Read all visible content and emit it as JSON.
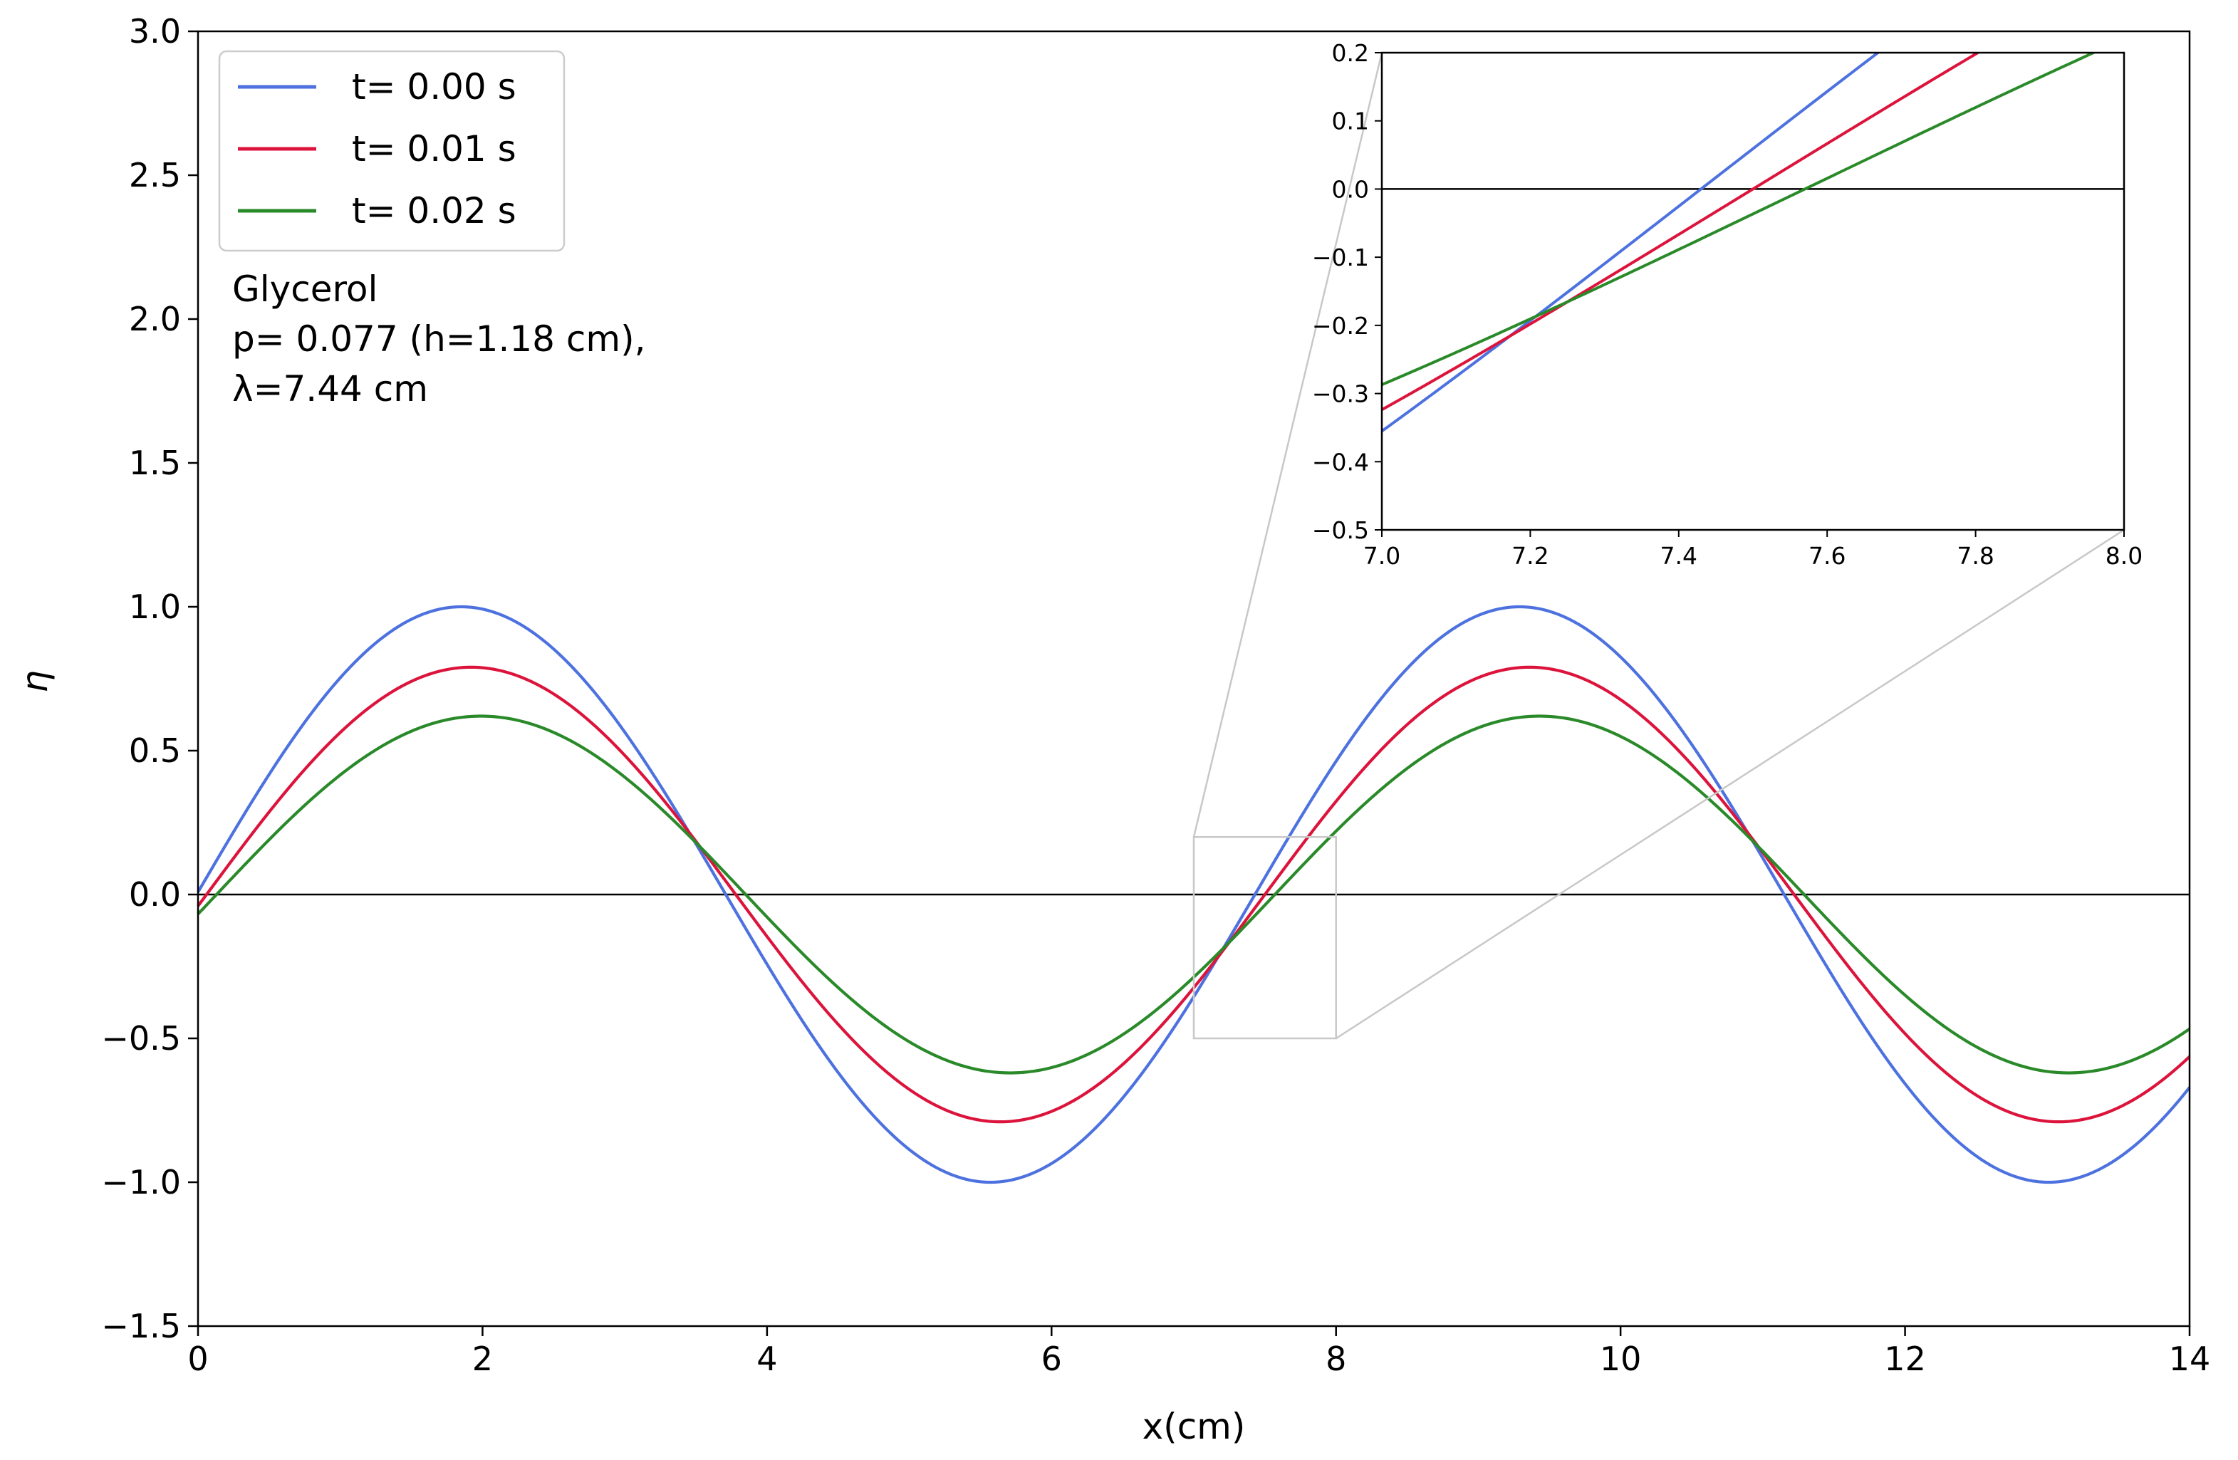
{
  "chart_data": {
    "type": "line",
    "title": "",
    "xlabel": "x(cm)",
    "ylabel": "η",
    "xlim": [
      0,
      14
    ],
    "ylim": [
      -1.5,
      3.0
    ],
    "xticks": [
      0,
      2,
      4,
      6,
      8,
      10,
      12,
      14
    ],
    "xtick_labels": [
      "0",
      "2",
      "4",
      "6",
      "8",
      "10",
      "12",
      "14"
    ],
    "yticks": [
      -1.5,
      -1.0,
      -0.5,
      0.0,
      0.5,
      1.0,
      1.5,
      2.0,
      2.5,
      3.0
    ],
    "ytick_labels": [
      "−1.5",
      "−1.0",
      "−0.5",
      "0.0",
      "0.5",
      "1.0",
      "1.5",
      "2.0",
      "2.5",
      "3.0"
    ],
    "wavelength_cm": 7.44,
    "series": [
      {
        "name": "t= 0.00 s",
        "color": "#4d72e0",
        "amplitude": 1.0,
        "zero_crossing_x": 7.43
      },
      {
        "name": "t= 0.01 s",
        "color": "#dc143c",
        "amplitude": 0.79,
        "zero_crossing_x": 7.5
      },
      {
        "name": "t= 0.02 s",
        "color": "#2a8a2a",
        "amplitude": 0.62,
        "zero_crossing_x": 7.57
      }
    ],
    "legend_position": "upper-left",
    "annotation_lines": [
      "Glycerol",
      "p= 0.077 (h=1.18 cm),",
      "λ=7.44 cm"
    ],
    "zero_line": true,
    "zoom_box": {
      "xlim": [
        7.0,
        8.0
      ],
      "ylim": [
        -0.5,
        0.2
      ]
    },
    "inset": {
      "xlim": [
        7.0,
        8.0
      ],
      "ylim": [
        -0.5,
        0.2
      ],
      "xticks": [
        7.0,
        7.2,
        7.4,
        7.6,
        7.8,
        8.0
      ],
      "xtick_labels": [
        "7.0",
        "7.2",
        "7.4",
        "7.6",
        "7.8",
        "8.0"
      ],
      "yticks": [
        -0.5,
        -0.4,
        -0.3,
        -0.2,
        -0.1,
        0.0,
        0.1,
        0.2
      ],
      "ytick_labels": [
        "−0.5",
        "−0.4",
        "−0.3",
        "−0.2",
        "−0.1",
        "0.0",
        "0.1",
        "0.2"
      ]
    }
  },
  "colors": {
    "axis": "#000000",
    "zoom_connector": "#c8c8c8",
    "legend_border": "#cccccc"
  }
}
